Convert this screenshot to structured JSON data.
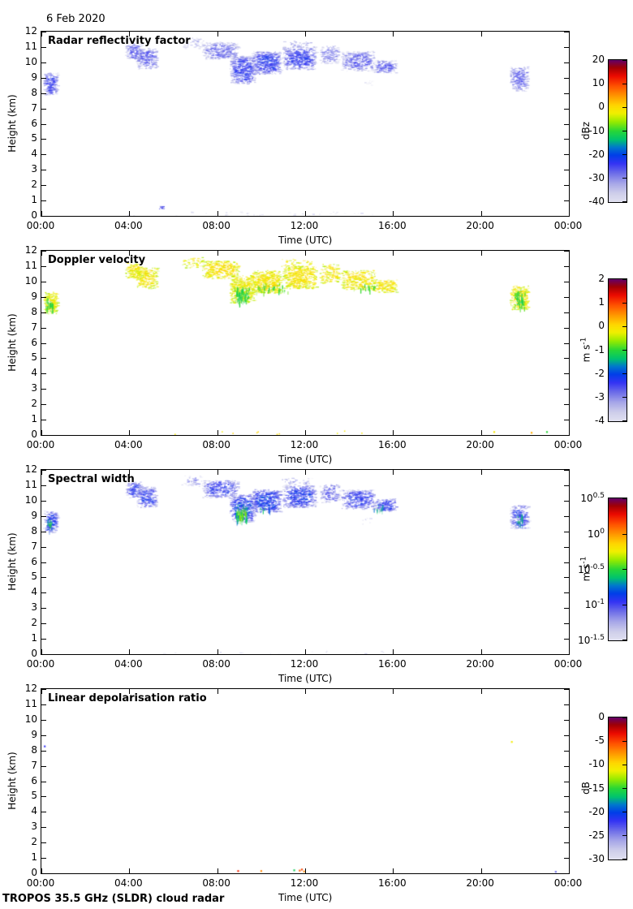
{
  "title": "6 Feb 2020",
  "footer": "TROPOS 35.5 GHz (SLDR) cloud radar",
  "axes": {
    "x_label": "Time (UTC)",
    "x_ticks": [
      "00:00",
      "04:00",
      "08:00",
      "12:00",
      "16:00",
      "20:00",
      "00:00"
    ],
    "x_range_hours": [
      0,
      24
    ],
    "y_label": "Height (km)",
    "y_ticks": [
      "12",
      "11",
      "10",
      "9",
      "8",
      "7",
      "6",
      "5",
      "4",
      "3",
      "2",
      "1",
      "0"
    ],
    "y_range_km": [
      0,
      12
    ],
    "grid": false
  },
  "colormap_stops": [
    [
      0.0,
      224,
      224,
      240
    ],
    [
      0.06,
      206,
      206,
      234
    ],
    [
      0.13,
      166,
      166,
      232
    ],
    [
      0.2,
      110,
      110,
      232
    ],
    [
      0.27,
      52,
      52,
      244
    ],
    [
      0.33,
      0,
      62,
      232
    ],
    [
      0.385,
      0,
      120,
      205
    ],
    [
      0.44,
      0,
      196,
      110
    ],
    [
      0.5,
      40,
      215,
      55
    ],
    [
      0.565,
      150,
      235,
      0
    ],
    [
      0.625,
      240,
      240,
      0
    ],
    [
      0.68,
      255,
      215,
      0
    ],
    [
      0.75,
      255,
      150,
      0
    ],
    [
      0.82,
      255,
      80,
      0
    ],
    [
      0.89,
      235,
      10,
      0
    ],
    [
      0.95,
      160,
      0,
      5
    ],
    [
      1.0,
      102,
      0,
      102
    ]
  ],
  "region_fields": "t0,t1 = hours UTC; h0,h1 = height km; v = core value; ve = edge value; d = echo density; k = texture kind",
  "chart_data": [
    {
      "type": "heatmap",
      "title": "Radar reflectivity factor",
      "unit": "dBz",
      "scale": {
        "min": -40,
        "max": 20,
        "jitter": 4,
        "log": false
      },
      "colorbar_ticks": [
        "20",
        "10",
        "0",
        "-10",
        "-20",
        "-30",
        "-40"
      ],
      "regions": [
        {
          "t0": 0.08,
          "t1": 0.72,
          "h0": 7.9,
          "h1": 9.35,
          "v": -25,
          "ve": -37,
          "d": 0.5
        },
        {
          "t0": 3.8,
          "t1": 4.55,
          "h0": 10.2,
          "h1": 11.25,
          "v": -28,
          "ve": -37,
          "d": 0.45
        },
        {
          "t0": 4.3,
          "t1": 5.25,
          "h0": 9.55,
          "h1": 10.95,
          "v": -28,
          "ve": -37,
          "d": 0.45
        },
        {
          "t0": 6.35,
          "t1": 7.4,
          "h0": 10.9,
          "h1": 11.65,
          "v": -33,
          "ve": -40,
          "d": 0.15
        },
        {
          "t0": 7.3,
          "t1": 8.95,
          "h0": 10.2,
          "h1": 11.35,
          "v": -28,
          "ve": -38,
          "d": 0.42
        },
        {
          "t0": 8.55,
          "t1": 9.7,
          "h0": 8.6,
          "h1": 10.45,
          "v": -25,
          "ve": -36,
          "d": 0.5
        },
        {
          "t0": 9.55,
          "t1": 10.9,
          "h0": 9.25,
          "h1": 10.75,
          "v": -24,
          "ve": -35,
          "d": 0.55
        },
        {
          "t0": 10.95,
          "t1": 12.5,
          "h0": 9.55,
          "h1": 11.05,
          "v": -25,
          "ve": -36,
          "d": 0.5
        },
        {
          "t0": 10.9,
          "t1": 12.3,
          "h0": 10.95,
          "h1": 11.5,
          "v": -33,
          "ve": -40,
          "d": 0.13
        },
        {
          "t0": 12.65,
          "t1": 13.55,
          "h0": 9.9,
          "h1": 11.15,
          "v": -30,
          "ve": -38,
          "d": 0.3
        },
        {
          "t0": 13.6,
          "t1": 15.15,
          "h0": 9.45,
          "h1": 10.75,
          "v": -28,
          "ve": -37,
          "d": 0.42
        },
        {
          "t0": 15.05,
          "t1": 16.15,
          "h0": 9.3,
          "h1": 10.15,
          "v": -27,
          "ve": -37,
          "d": 0.45
        },
        {
          "t0": 21.3,
          "t1": 22.15,
          "h0": 8.15,
          "h1": 9.75,
          "v": -28,
          "ve": -37,
          "d": 0.45
        },
        {
          "t0": 5.35,
          "t1": 5.5,
          "h0": 0.45,
          "h1": 0.65,
          "v": -27,
          "ve": -29,
          "d": 1.2
        },
        {
          "t0": 3.5,
          "t1": 16.5,
          "h0": 0.0,
          "h1": 0.3,
          "v": -38.5,
          "ve": -40,
          "d": 0.025
        },
        {
          "t0": 14.6,
          "t1": 15.05,
          "h0": 8.5,
          "h1": 8.9,
          "v": -38,
          "ve": -40,
          "d": 0.12
        }
      ],
      "points": []
    },
    {
      "type": "heatmap",
      "title": "Doppler velocity",
      "unit": {
        "b": "m s",
        "s": "-1"
      },
      "scale": {
        "min": -4,
        "max": 2,
        "jitter": 0.28,
        "log": false
      },
      "colorbar_ticks": [
        "2",
        "1",
        "0",
        "-1",
        "-2",
        "-3",
        "-4"
      ],
      "regions": [
        {
          "t0": 0.08,
          "t1": 0.72,
          "h0": 7.9,
          "h1": 9.35,
          "v": -0.2,
          "ve": -0.45,
          "d": 0.5
        },
        {
          "t0": 3.8,
          "t1": 4.55,
          "h0": 10.2,
          "h1": 11.25,
          "v": -0.12,
          "ve": -0.4,
          "d": 0.45
        },
        {
          "t0": 4.3,
          "t1": 5.25,
          "h0": 9.55,
          "h1": 10.95,
          "v": -0.12,
          "ve": -0.4,
          "d": 0.45
        },
        {
          "t0": 6.35,
          "t1": 7.4,
          "h0": 10.9,
          "h1": 11.65,
          "v": -0.2,
          "ve": -0.45,
          "d": 0.15
        },
        {
          "t0": 7.3,
          "t1": 8.95,
          "h0": 10.2,
          "h1": 11.35,
          "v": -0.08,
          "ve": -0.38,
          "d": 0.42
        },
        {
          "t0": 8.55,
          "t1": 9.7,
          "h0": 8.6,
          "h1": 10.45,
          "v": -0.18,
          "ve": -0.42,
          "d": 0.5
        },
        {
          "t0": 9.55,
          "t1": 10.9,
          "h0": 9.25,
          "h1": 10.75,
          "v": -0.1,
          "ve": -0.38,
          "d": 0.55
        },
        {
          "t0": 10.95,
          "t1": 12.5,
          "h0": 9.55,
          "h1": 11.05,
          "v": -0.1,
          "ve": -0.38,
          "d": 0.5
        },
        {
          "t0": 10.9,
          "t1": 12.3,
          "h0": 10.95,
          "h1": 11.5,
          "v": -0.2,
          "ve": -0.45,
          "d": 0.13
        },
        {
          "t0": 12.65,
          "t1": 13.55,
          "h0": 9.9,
          "h1": 11.15,
          "v": -0.15,
          "ve": -0.42,
          "d": 0.3
        },
        {
          "t0": 13.6,
          "t1": 15.15,
          "h0": 9.45,
          "h1": 10.75,
          "v": -0.12,
          "ve": -0.4,
          "d": 0.42
        },
        {
          "t0": 15.05,
          "t1": 16.15,
          "h0": 9.3,
          "h1": 10.15,
          "v": -0.12,
          "ve": -0.4,
          "d": 0.45
        },
        {
          "t0": 21.3,
          "t1": 22.15,
          "h0": 8.15,
          "h1": 9.75,
          "v": -0.12,
          "ve": -0.4,
          "d": 0.45
        },
        {
          "t0": 0.18,
          "t1": 0.55,
          "h0": 8.0,
          "h1": 9.0,
          "v": -1.1,
          "ve": -0.75,
          "d": 0.25,
          "k": "streaks"
        },
        {
          "t0": 8.75,
          "t1": 9.45,
          "h0": 8.6,
          "h1": 9.7,
          "v": -1.15,
          "ve": -0.8,
          "d": 0.32,
          "k": "streaks"
        },
        {
          "t0": 9.6,
          "t1": 11.2,
          "h0": 9.3,
          "h1": 9.9,
          "v": -1.0,
          "ve": -0.7,
          "d": 0.1,
          "k": "streaks"
        },
        {
          "t0": 14.2,
          "t1": 15.3,
          "h0": 9.4,
          "h1": 9.9,
          "v": -1.0,
          "ve": -0.7,
          "d": 0.08,
          "k": "streaks"
        },
        {
          "t0": 21.5,
          "t1": 22.0,
          "h0": 8.3,
          "h1": 9.5,
          "v": -1.05,
          "ve": -0.75,
          "d": 0.22,
          "k": "streaks"
        },
        {
          "t0": 6.0,
          "t1": 16.3,
          "h0": 0.05,
          "h1": 0.3,
          "v": -0.15,
          "ve": -0.4,
          "d": 0.012,
          "k": "dots"
        }
      ],
      "points": [
        [
          20.6,
          0.2,
          -0.1
        ],
        [
          22.3,
          0.15,
          0.35
        ],
        [
          23.0,
          0.2,
          -1.0
        ]
      ]
    },
    {
      "type": "heatmap",
      "title": "Spectral width",
      "unit": {
        "b": "m s",
        "s": "-1"
      },
      "scale": {
        "min": -1.5,
        "max": 0.5,
        "jitter": 0.15,
        "log": true
      },
      "colorbar_ticks": [
        {
          "b": "10",
          "s": "0.5"
        },
        {
          "b": "10",
          "s": "0"
        },
        {
          "b": "10",
          "s": "-0.5"
        },
        {
          "b": "10",
          "s": "-1"
        },
        {
          "b": "10",
          "s": "-1.5"
        }
      ],
      "regions": [
        {
          "t0": 0.08,
          "t1": 0.72,
          "h0": 7.9,
          "h1": 9.35,
          "v": -0.95,
          "ve": -1.4,
          "d": 0.5
        },
        {
          "t0": 3.8,
          "t1": 4.55,
          "h0": 10.2,
          "h1": 11.25,
          "v": -1.0,
          "ve": -1.4,
          "d": 0.45
        },
        {
          "t0": 4.3,
          "t1": 5.25,
          "h0": 9.55,
          "h1": 10.95,
          "v": -1.0,
          "ve": -1.4,
          "d": 0.45
        },
        {
          "t0": 6.35,
          "t1": 7.4,
          "h0": 10.9,
          "h1": 11.65,
          "v": -1.2,
          "ve": -1.48,
          "d": 0.15
        },
        {
          "t0": 7.3,
          "t1": 8.95,
          "h0": 10.2,
          "h1": 11.35,
          "v": -1.0,
          "ve": -1.42,
          "d": 0.42
        },
        {
          "t0": 8.55,
          "t1": 9.7,
          "h0": 8.6,
          "h1": 10.45,
          "v": -0.9,
          "ve": -1.35,
          "d": 0.5
        },
        {
          "t0": 9.55,
          "t1": 10.9,
          "h0": 9.25,
          "h1": 10.75,
          "v": -0.9,
          "ve": -1.32,
          "d": 0.55
        },
        {
          "t0": 10.95,
          "t1": 12.5,
          "h0": 9.55,
          "h1": 11.05,
          "v": -0.95,
          "ve": -1.35,
          "d": 0.5
        },
        {
          "t0": 10.9,
          "t1": 12.3,
          "h0": 10.95,
          "h1": 11.5,
          "v": -1.2,
          "ve": -1.48,
          "d": 0.13
        },
        {
          "t0": 12.65,
          "t1": 13.55,
          "h0": 9.9,
          "h1": 11.15,
          "v": -1.1,
          "ve": -1.45,
          "d": 0.3
        },
        {
          "t0": 13.6,
          "t1": 15.15,
          "h0": 9.45,
          "h1": 10.75,
          "v": -1.0,
          "ve": -1.4,
          "d": 0.42
        },
        {
          "t0": 15.05,
          "t1": 16.15,
          "h0": 9.3,
          "h1": 10.15,
          "v": -1.0,
          "ve": -1.4,
          "d": 0.45
        },
        {
          "t0": 21.3,
          "t1": 22.15,
          "h0": 8.15,
          "h1": 9.75,
          "v": -1.0,
          "ve": -1.4,
          "d": 0.45
        },
        {
          "t0": 0.22,
          "t1": 0.5,
          "h0": 8.1,
          "h1": 8.85,
          "v": -0.55,
          "ve": -0.9,
          "d": 0.2,
          "k": "streaks"
        },
        {
          "t0": 8.8,
          "t1": 9.4,
          "h0": 8.65,
          "h1": 9.8,
          "v": -0.45,
          "ve": -0.85,
          "d": 0.32,
          "k": "streaks"
        },
        {
          "t0": 9.7,
          "t1": 10.4,
          "h0": 9.3,
          "h1": 9.7,
          "v": -0.6,
          "ve": -0.95,
          "d": 0.08,
          "k": "streaks"
        },
        {
          "t0": 15.1,
          "t1": 15.6,
          "h0": 9.35,
          "h1": 9.8,
          "v": -0.6,
          "ve": -0.95,
          "d": 0.1,
          "k": "streaks"
        },
        {
          "t0": 21.55,
          "t1": 21.95,
          "h0": 8.4,
          "h1": 9.3,
          "v": -0.6,
          "ve": -0.95,
          "d": 0.14,
          "k": "streaks"
        },
        {
          "t0": 4.0,
          "t1": 16.0,
          "h0": 0.0,
          "h1": 0.25,
          "v": -1.43,
          "ve": -1.5,
          "d": 0.015
        },
        {
          "t0": 14.6,
          "t1": 15.05,
          "h0": 8.5,
          "h1": 8.9,
          "v": -1.4,
          "ve": -1.5,
          "d": 0.12
        }
      ],
      "points": []
    },
    {
      "type": "heatmap",
      "title": "Linear depolarisation ratio",
      "unit": "dB",
      "scale": {
        "min": -30,
        "max": 0,
        "jitter": 0,
        "log": false
      },
      "colorbar_ticks": [
        "0",
        "-5",
        "-10",
        "-15",
        "-20",
        "-25",
        "-30"
      ],
      "regions": [],
      "points": [
        [
          0.15,
          8.27,
          -22
        ],
        [
          21.4,
          8.56,
          -11
        ],
        [
          8.95,
          0.15,
          -4
        ],
        [
          10.0,
          0.15,
          -7
        ],
        [
          11.5,
          0.2,
          -16
        ],
        [
          11.75,
          0.18,
          -6
        ],
        [
          11.85,
          0.25,
          -5
        ],
        [
          11.95,
          0.12,
          -7
        ],
        [
          23.4,
          0.1,
          -24
        ]
      ]
    }
  ]
}
